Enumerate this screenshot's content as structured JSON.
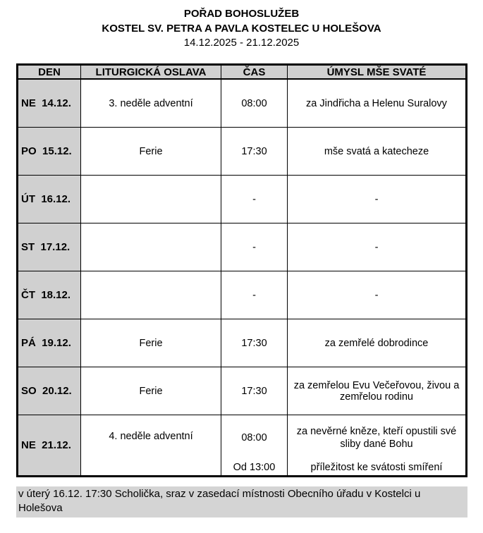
{
  "header": {
    "title": "POŘAD BOHOSLUŽEB",
    "church": "KOSTEL SV. PETRA A PAVLA KOSTELEC U HOLEŠOVA",
    "dates": "14.12.2025 - 21.12.2025"
  },
  "table": {
    "columns": [
      "DEN",
      "LITURGICKÁ OSLAVA",
      "ČAS",
      "ÚMYSL MŠE SVATÉ"
    ],
    "rows": [
      {
        "day": "NE  14.12.",
        "celebration": "3. neděle adventní",
        "time": "08:00",
        "intention": "za Jindřicha a Helenu Suralovy"
      },
      {
        "day": "PO  15.12.",
        "celebration": "Ferie",
        "time": "17:30",
        "intention": "mše svatá a katecheze"
      },
      {
        "day": "ÚT  16.12.",
        "celebration": "",
        "time": "-",
        "intention": "-"
      },
      {
        "day": "ST  17.12.",
        "celebration": "",
        "time": "-",
        "intention": "-"
      },
      {
        "day": "ČT  18.12.",
        "celebration": "",
        "time": "-",
        "intention": "-"
      },
      {
        "day": "PÁ  19.12.",
        "celebration": "Ferie",
        "time": "17:30",
        "intention": "za zemřelé dobrodince"
      },
      {
        "day": "SO  20.12.",
        "celebration": "Ferie",
        "time": "17:30",
        "intention": "za zemřelou Evu Večeřovou, živou a zemřelou rodinu"
      },
      {
        "day": "NE  21.12.",
        "celebration": "4. neděle adventní",
        "time": "08:00",
        "intention": "za nevěrné kněze, kteří opustili své sliby dané Bohu",
        "time2": "Od 13:00",
        "intention2": "příležitost ke svátosti smíření"
      }
    ]
  },
  "note": "v úterý 16.12. 17:30 Scholička, sraz v zasedací místnosti Obecního úřadu v Kostelci u Holešova"
}
